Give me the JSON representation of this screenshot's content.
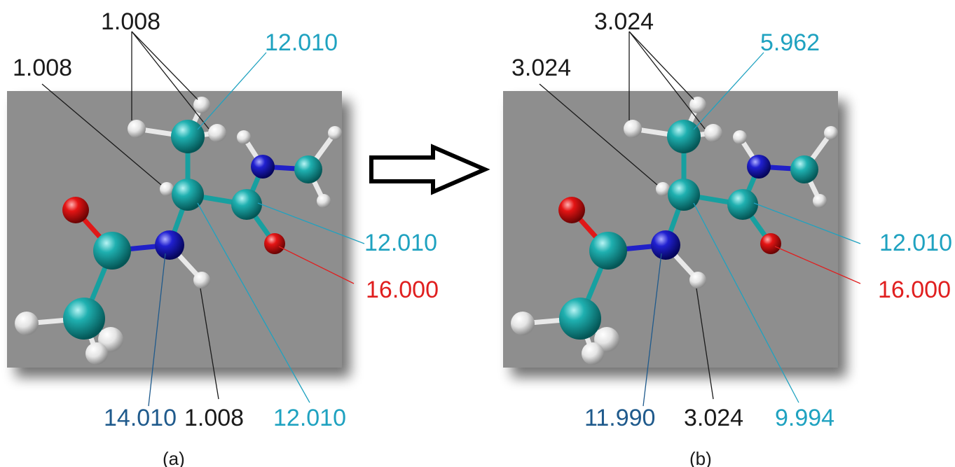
{
  "colors": {
    "black": "#1a1a1a",
    "cyan": "#1fa2c0",
    "blue": "#1f5a8c",
    "red": "#e01f1f",
    "panel": "#8e8e8e",
    "carbon": "#1a9a9a",
    "nitrogen": "#2020c8",
    "oxygen": "#e01818",
    "hydrogen": "#e8e8e8"
  },
  "panels": [
    {
      "caption": "(a)",
      "labels": {
        "methyl_h": "1.008",
        "alpha_h": "1.008",
        "methyl_c": "12.010",
        "carbonyl_c": "12.010",
        "oxygen": "16.000",
        "nitrogen": "14.010",
        "amide_h": "1.008",
        "alpha_c": "12.010"
      }
    },
    {
      "caption": "(b)",
      "labels": {
        "methyl_h": "3.024",
        "alpha_h": "3.024",
        "methyl_c": "5.962",
        "carbonyl_c": "12.010",
        "oxygen": "16.000",
        "nitrogen": "11.990",
        "amide_h": "3.024",
        "alpha_c": "9.994"
      }
    }
  ]
}
